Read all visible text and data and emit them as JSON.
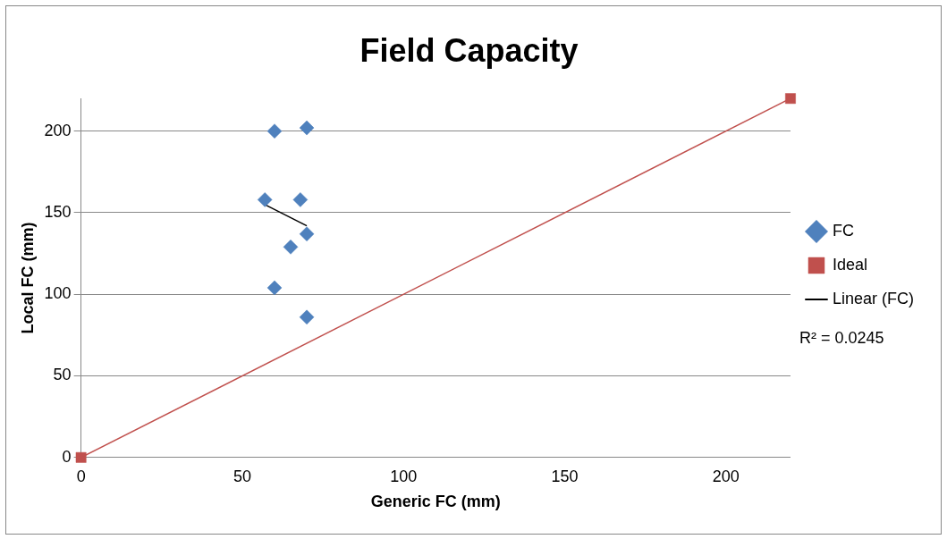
{
  "chart_data": {
    "type": "scatter",
    "title": "Field Capacity",
    "xlabel": "Generic FC (mm)",
    "ylabel": "Local FC (mm)",
    "xlim": [
      0,
      220
    ],
    "xticks": [
      0,
      50,
      100,
      150,
      200
    ],
    "ylim": [
      0,
      220
    ],
    "yticks": [
      0,
      50,
      100,
      150,
      200
    ],
    "grid": "y",
    "legend": "right",
    "annotations": [
      "R² = 0.0245"
    ],
    "series": [
      {
        "name": "FC",
        "type": "scatter",
        "marker": "diamond",
        "color": "#4f81bd",
        "x": [
          60,
          70,
          57,
          68,
          70,
          65,
          60,
          70
        ],
        "values": [
          200,
          202,
          158,
          158,
          137,
          129,
          104,
          86
        ]
      },
      {
        "name": "Ideal",
        "type": "line",
        "marker": "square",
        "color": "#c0504d",
        "x": [
          0,
          220
        ],
        "values": [
          0,
          220
        ]
      },
      {
        "name": "Linear (FC)",
        "type": "line",
        "marker": "none",
        "color": "#000000",
        "x": [
          57,
          70
        ],
        "values": [
          155,
          142
        ]
      }
    ]
  }
}
